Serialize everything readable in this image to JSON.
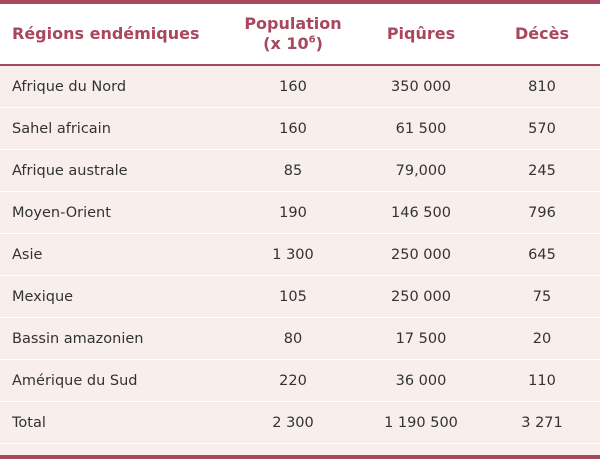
{
  "table": {
    "headers": {
      "region": "Régions endémiques",
      "population_line1": "Population",
      "population_line2_prefix": "(x 10",
      "population_exponent": "6",
      "population_line2_suffix": ")",
      "piqures": "Piqûres",
      "deces": "Décès"
    },
    "rows": [
      {
        "region": "Afrique du Nord",
        "population": "160",
        "piqures": "350 000",
        "deces": "810"
      },
      {
        "region": "Sahel africain",
        "population": "160",
        "piqures": "61 500",
        "deces": "570"
      },
      {
        "region": "Afrique australe",
        "population": "85",
        "piqures": "79,000",
        "deces": "245"
      },
      {
        "region": "Moyen-Orient",
        "population": "190",
        "piqures": "146 500",
        "deces": "796"
      },
      {
        "region": "Asie",
        "population": "1 300",
        "piqures": "250 000",
        "deces": "645"
      },
      {
        "region": "Mexique",
        "population": "105",
        "piqures": "250 000",
        "deces": "75"
      },
      {
        "region": "Bassin amazonien",
        "population": "80",
        "piqures": "17 500",
        "deces": "20"
      },
      {
        "region": "Amérique du Sud",
        "population": "220",
        "piqures": "36 000",
        "deces": "110"
      },
      {
        "region": "Total",
        "population": "2 300",
        "piqures": "1 190 500",
        "deces": "3 271"
      }
    ]
  },
  "colors": {
    "accent": "#a8475e",
    "body_background": "#f8eeec",
    "text": "#333333"
  }
}
